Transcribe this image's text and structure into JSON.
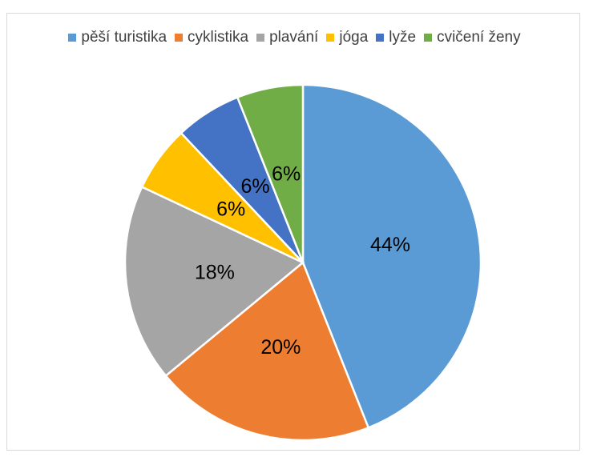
{
  "chart_data": {
    "type": "pie",
    "categories": [
      "pěší turistika",
      "cyklistika",
      "plavání",
      "jóga",
      "lyže",
      "cvičení ženy"
    ],
    "values": [
      44,
      20,
      18,
      6,
      6,
      6
    ],
    "value_labels": [
      "44%",
      "20%",
      "18%",
      "6%",
      "6%",
      "6%"
    ],
    "colors": [
      "#5b9bd5",
      "#ed7d31",
      "#a5a5a5",
      "#ffc000",
      "#4472c4",
      "#70ad47"
    ],
    "legend": "top"
  }
}
